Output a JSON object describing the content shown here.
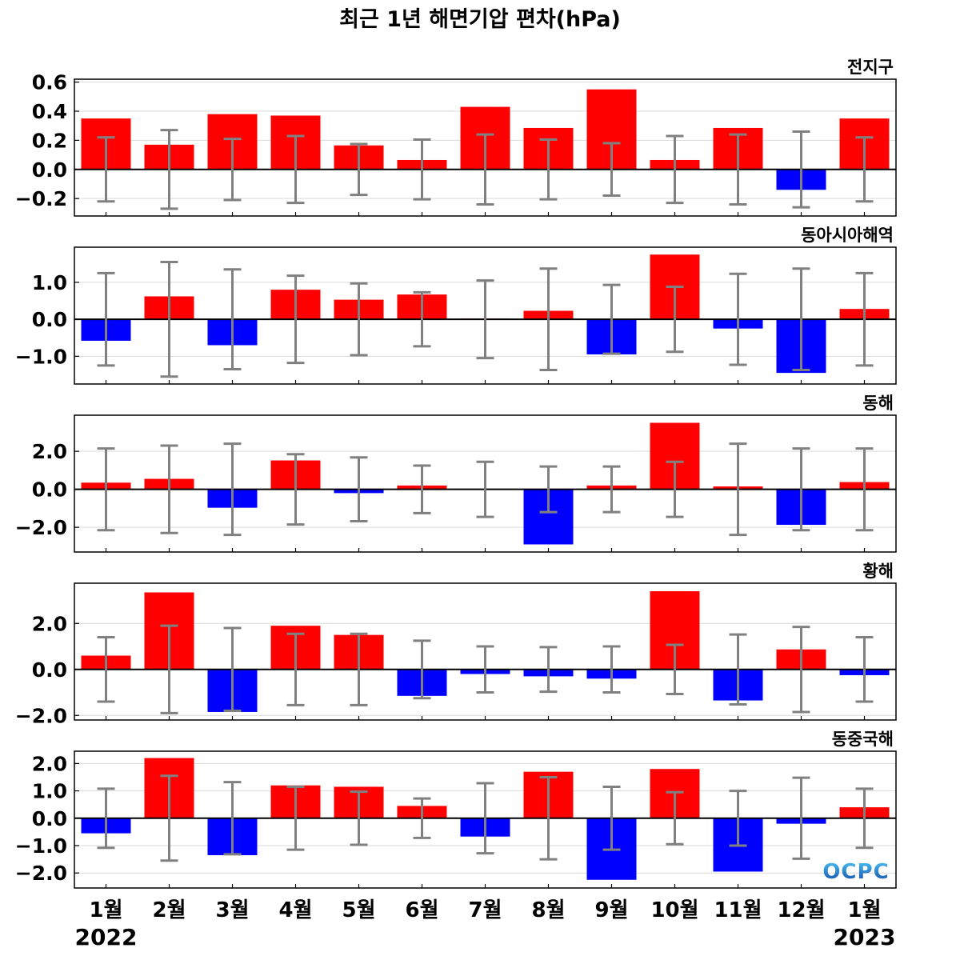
{
  "title": "최근 1년 해면기압 편차(hPa)",
  "logo": "OCPC",
  "colors": {
    "positive": "#ff0000",
    "negative": "#0000ff",
    "errorbar": "#808080",
    "grid": "#d9d9d9",
    "zero": "#000000"
  },
  "chart_data": {
    "type": "bar",
    "categories": [
      "1월",
      "2월",
      "3월",
      "4월",
      "5월",
      "6월",
      "7월",
      "8월",
      "9월",
      "10월",
      "11월",
      "12월",
      "1월"
    ],
    "year_labels": {
      "start": "2022",
      "end": "2023"
    },
    "panels": [
      {
        "title": "전지구",
        "ylim": [
          -0.32,
          0.62
        ],
        "yticks": [
          -0.2,
          0.0,
          0.2,
          0.4,
          0.6
        ],
        "tick_labels": [
          "−0.2",
          "0.0",
          "0.2",
          "0.4",
          "0.6"
        ],
        "values": [
          0.35,
          0.17,
          0.38,
          0.37,
          0.165,
          0.065,
          0.43,
          0.285,
          0.55,
          0.065,
          0.285,
          -0.14,
          0.35
        ],
        "errors": [
          0.22,
          0.27,
          0.21,
          0.23,
          0.175,
          0.205,
          0.24,
          0.205,
          0.18,
          0.23,
          0.24,
          0.26,
          0.22
        ]
      },
      {
        "title": "동아시아해역",
        "ylim": [
          -1.75,
          1.95
        ],
        "yticks": [
          -1.0,
          0.0,
          1.0
        ],
        "tick_labels": [
          "−1.0",
          "0.0",
          "1.0"
        ],
        "values": [
          -0.58,
          0.62,
          -0.7,
          0.8,
          0.53,
          0.67,
          0.02,
          0.23,
          -0.95,
          1.75,
          -0.25,
          -1.45,
          0.28
        ],
        "errors": [
          1.25,
          1.55,
          1.35,
          1.18,
          0.97,
          0.73,
          1.05,
          1.37,
          0.93,
          0.88,
          1.23,
          1.37,
          1.25
        ]
      },
      {
        "title": "동해",
        "ylim": [
          -3.3,
          3.9
        ],
        "yticks": [
          -2.0,
          0.0,
          2.0
        ],
        "tick_labels": [
          "−2.0",
          "0.0",
          "2.0"
        ],
        "values": [
          0.35,
          0.55,
          -0.97,
          1.52,
          -0.2,
          0.2,
          0.02,
          -2.9,
          0.2,
          3.5,
          0.15,
          -1.87,
          0.38
        ],
        "errors": [
          2.15,
          2.3,
          2.4,
          1.85,
          1.68,
          1.25,
          1.45,
          1.2,
          1.2,
          1.45,
          2.4,
          2.15,
          2.15
        ]
      },
      {
        "title": "황해",
        "ylim": [
          -2.2,
          3.75
        ],
        "yticks": [
          -2.0,
          0.0,
          2.0
        ],
        "tick_labels": [
          "−2.0",
          "0.0",
          "2.0"
        ],
        "values": [
          0.6,
          3.35,
          -1.85,
          1.9,
          1.5,
          -1.15,
          -0.2,
          -0.3,
          -0.4,
          3.4,
          -1.35,
          0.87,
          -0.25
        ],
        "errors": [
          1.4,
          1.9,
          1.8,
          1.55,
          1.55,
          1.25,
          1.0,
          0.97,
          1.0,
          1.07,
          1.52,
          1.85,
          1.4
        ]
      },
      {
        "title": "동중국해",
        "ylim": [
          -2.55,
          2.45
        ],
        "yticks": [
          -2.0,
          -1.0,
          0.0,
          1.0,
          2.0
        ],
        "tick_labels": [
          "−2.0",
          "−1.0",
          "0.0",
          "1.0",
          "2.0"
        ],
        "values": [
          -0.55,
          2.2,
          -1.35,
          1.2,
          1.15,
          0.45,
          -0.67,
          1.7,
          -2.25,
          1.8,
          -1.95,
          -0.2,
          0.4
        ],
        "errors": [
          1.08,
          1.55,
          1.32,
          1.15,
          0.97,
          0.72,
          1.28,
          1.5,
          1.15,
          0.95,
          1.0,
          1.48,
          1.08
        ]
      }
    ]
  }
}
